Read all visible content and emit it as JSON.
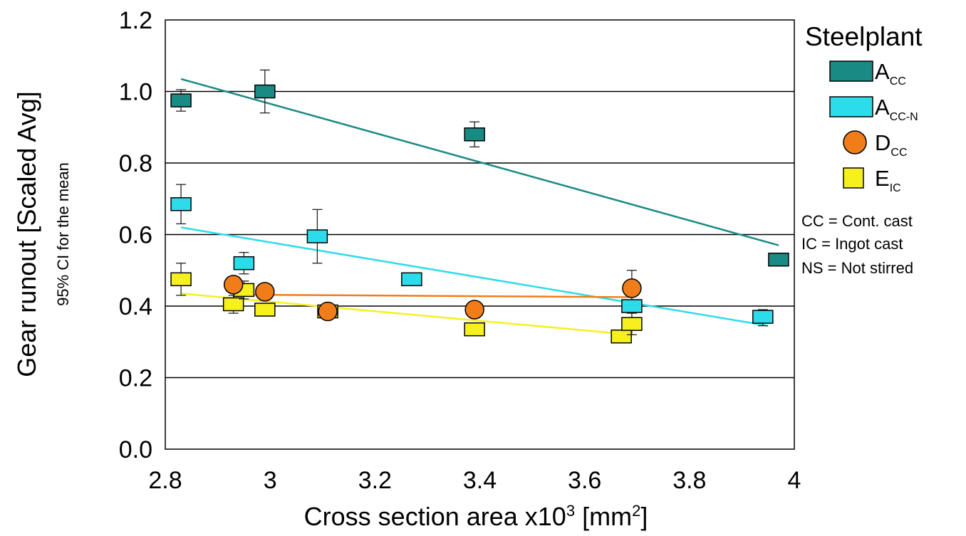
{
  "chart_data": {
    "type": "scatter",
    "title": "",
    "xlabel": "Cross section area x10",
    "xlabel_sup1": "3",
    "xlabel_mid": " [mm",
    "xlabel_sup2": "2",
    "xlabel_end": "]",
    "ylabel": "Gear runout  [Scaled Avg]",
    "ylabel_sub": "95% CI for the mean",
    "xlim": [
      2.8,
      4.0
    ],
    "ylim": [
      0.0,
      1.2
    ],
    "xticks": [
      "2.8",
      "3",
      "3.2",
      "3.4",
      "3.6",
      "3.8",
      "4"
    ],
    "yticks": [
      "0.0",
      "0.2",
      "0.4",
      "0.6",
      "0.8",
      "1.0",
      "1.2"
    ],
    "horizontal_grid": true,
    "legend": {
      "title": "Steelplant",
      "placement": "right",
      "notes": [
        "CC = Cont. cast",
        "IC  = Ingot cast",
        "NS = Not stirred"
      ]
    },
    "series": [
      {
        "name": "A",
        "name_sub": "CC",
        "marker": "square",
        "color": "#1a8a84",
        "points": [
          {
            "x": 2.83,
            "y": 0.975,
            "lo": 0.945,
            "hi": 1.005
          },
          {
            "x": 2.99,
            "y": 1.0,
            "lo": 0.94,
            "hi": 1.06
          },
          {
            "x": 3.39,
            "y": 0.88,
            "lo": 0.845,
            "hi": 0.915
          },
          {
            "x": 3.97,
            "y": 0.53,
            "lo": 0.52,
            "hi": 0.545
          }
        ],
        "trend": {
          "x1": 2.83,
          "y1": 1.035,
          "x2": 3.97,
          "y2": 0.57
        }
      },
      {
        "name": "A",
        "name_sub": "CC-N",
        "marker": "square",
        "color": "#2cdcea",
        "points": [
          {
            "x": 2.83,
            "y": 0.685,
            "lo": 0.63,
            "hi": 0.74
          },
          {
            "x": 2.95,
            "y": 0.52,
            "lo": 0.49,
            "hi": 0.55
          },
          {
            "x": 3.09,
            "y": 0.595,
            "lo": 0.52,
            "hi": 0.67
          },
          {
            "x": 3.27,
            "y": 0.475,
            "lo": 0.46,
            "hi": 0.49
          },
          {
            "x": 3.69,
            "y": 0.4,
            "lo": 0.385,
            "hi": 0.415
          },
          {
            "x": 3.94,
            "y": 0.37,
            "lo": 0.345,
            "hi": 0.39
          }
        ],
        "trend": {
          "x1": 2.83,
          "y1": 0.62,
          "x2": 3.95,
          "y2": 0.345
        }
      },
      {
        "name": "D",
        "name_sub": "CC",
        "marker": "circle",
        "color": "#f07d1a",
        "points": [
          {
            "x": 2.93,
            "y": 0.46,
            "lo": 0.44,
            "hi": 0.48
          },
          {
            "x": 2.99,
            "y": 0.44,
            "lo": 0.42,
            "hi": 0.46
          },
          {
            "x": 3.11,
            "y": 0.385,
            "lo": 0.37,
            "hi": 0.4
          },
          {
            "x": 3.39,
            "y": 0.39,
            "lo": 0.375,
            "hi": 0.405
          },
          {
            "x": 3.69,
            "y": 0.45,
            "lo": 0.405,
            "hi": 0.5
          }
        ],
        "trend": {
          "x1": 2.93,
          "y1": 0.432,
          "x2": 3.69,
          "y2": 0.425
        }
      },
      {
        "name": "E",
        "name_sub": "IC",
        "marker": "square",
        "color": "#f5f01e",
        "points": [
          {
            "x": 2.83,
            "y": 0.475,
            "lo": 0.43,
            "hi": 0.52
          },
          {
            "x": 2.93,
            "y": 0.405,
            "lo": 0.38,
            "hi": 0.43
          },
          {
            "x": 2.95,
            "y": 0.445,
            "lo": 0.42,
            "hi": 0.47
          },
          {
            "x": 2.99,
            "y": 0.39,
            "lo": 0.375,
            "hi": 0.405
          },
          {
            "x": 3.11,
            "y": 0.385,
            "lo": 0.37,
            "hi": 0.4
          },
          {
            "x": 3.39,
            "y": 0.335,
            "lo": 0.32,
            "hi": 0.35
          },
          {
            "x": 3.67,
            "y": 0.315,
            "lo": 0.3,
            "hi": 0.33
          },
          {
            "x": 3.69,
            "y": 0.35,
            "lo": 0.32,
            "hi": 0.38
          }
        ],
        "trend": {
          "x1": 2.83,
          "y1": 0.435,
          "x2": 3.69,
          "y2": 0.32
        }
      }
    ]
  }
}
